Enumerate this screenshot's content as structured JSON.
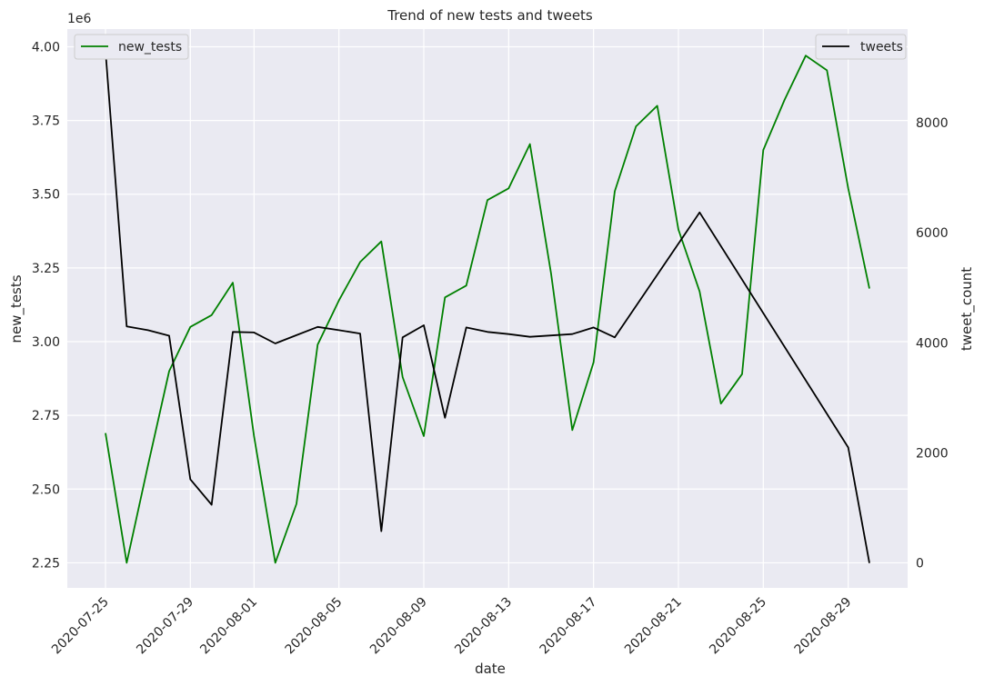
{
  "chart_data": {
    "type": "line",
    "title": "Trend of new tests and tweets",
    "xlabel": "date",
    "ylabel_left": "new_tests",
    "ylabel_right": "tweet_count",
    "left_axis_multiplier": "1e6",
    "x": [
      "2020-07-25",
      "2020-07-26",
      "2020-07-27",
      "2020-07-28",
      "2020-07-29",
      "2020-07-30",
      "2020-07-31",
      "2020-08-01",
      "2020-08-02",
      "2020-08-03",
      "2020-08-04",
      "2020-08-05",
      "2020-08-06",
      "2020-08-07",
      "2020-08-08",
      "2020-08-09",
      "2020-08-10",
      "2020-08-11",
      "2020-08-12",
      "2020-08-13",
      "2020-08-14",
      "2020-08-15",
      "2020-08-16",
      "2020-08-17",
      "2020-08-18",
      "2020-08-19",
      "2020-08-20",
      "2020-08-21",
      "2020-08-22",
      "2020-08-23",
      "2020-08-24",
      "2020-08-25",
      "2020-08-26",
      "2020-08-27",
      "2020-08-28",
      "2020-08-29",
      "2020-08-30"
    ],
    "x_ticks": [
      "2020-07-25",
      "2020-07-29",
      "2020-08-01",
      "2020-08-05",
      "2020-08-09",
      "2020-08-13",
      "2020-08-17",
      "2020-08-21",
      "2020-08-25",
      "2020-08-29"
    ],
    "left_ticks": [
      2.25,
      2.5,
      2.75,
      3.0,
      3.25,
      3.5,
      3.75,
      4.0
    ],
    "left_tick_labels": [
      "2.25",
      "2.50",
      "2.75",
      "3.00",
      "3.25",
      "3.50",
      "3.75",
      "4.00"
    ],
    "left_ylim": [
      2.165,
      4.06
    ],
    "right_ticks": [
      0,
      2000,
      4000,
      6000,
      8000
    ],
    "right_tick_labels": [
      "0",
      "2000",
      "4000",
      "6000",
      "8000"
    ],
    "right_ylim": [
      -450,
      9700
    ],
    "grid": true,
    "series": [
      {
        "name": "new_tests",
        "axis": "left",
        "color": "#008000",
        "legend_position": "top-left",
        "values": [
          2.69,
          2.25,
          2.58,
          2.9,
          3.05,
          3.09,
          3.2,
          2.68,
          2.25,
          2.45,
          2.99,
          3.14,
          3.27,
          3.34,
          2.88,
          2.68,
          3.15,
          3.19,
          3.48,
          3.52,
          3.67,
          3.23,
          2.7,
          2.93,
          3.51,
          3.73,
          3.8,
          3.38,
          3.17,
          2.79,
          2.89,
          3.65,
          3.82,
          3.97,
          3.92,
          3.52,
          3.18
        ]
      },
      {
        "name": "tweets",
        "axis": "right",
        "color": "#000000",
        "legend_position": "top-right",
        "points": [
          [
            "2020-07-25",
            9300
          ],
          [
            "2020-07-26",
            4300
          ],
          [
            "2020-07-27",
            4230
          ],
          [
            "2020-07-28",
            4130
          ],
          [
            "2020-07-29",
            1520
          ],
          [
            "2020-07-30",
            1060
          ],
          [
            "2020-07-31",
            4200
          ],
          [
            "2020-08-01",
            4190
          ],
          [
            "2020-08-02",
            3990
          ],
          [
            "2020-08-03",
            4140
          ],
          [
            "2020-08-04",
            4290
          ],
          [
            "2020-08-05",
            4230
          ],
          [
            "2020-08-06",
            4170
          ],
          [
            "2020-08-07",
            580
          ],
          [
            "2020-08-08",
            4100
          ],
          [
            "2020-08-09",
            4320
          ],
          [
            "2020-08-10",
            2640
          ],
          [
            "2020-08-11",
            4280
          ],
          [
            "2020-08-12",
            4200
          ],
          [
            "2020-08-13",
            4160
          ],
          [
            "2020-08-14",
            4110
          ],
          [
            "2020-08-16",
            4160
          ],
          [
            "2020-08-17",
            4280
          ],
          [
            "2020-08-18",
            4100
          ],
          [
            "2020-08-22",
            6370
          ],
          [
            "2020-08-29",
            2100
          ],
          [
            "2020-08-30",
            0
          ]
        ]
      }
    ]
  }
}
